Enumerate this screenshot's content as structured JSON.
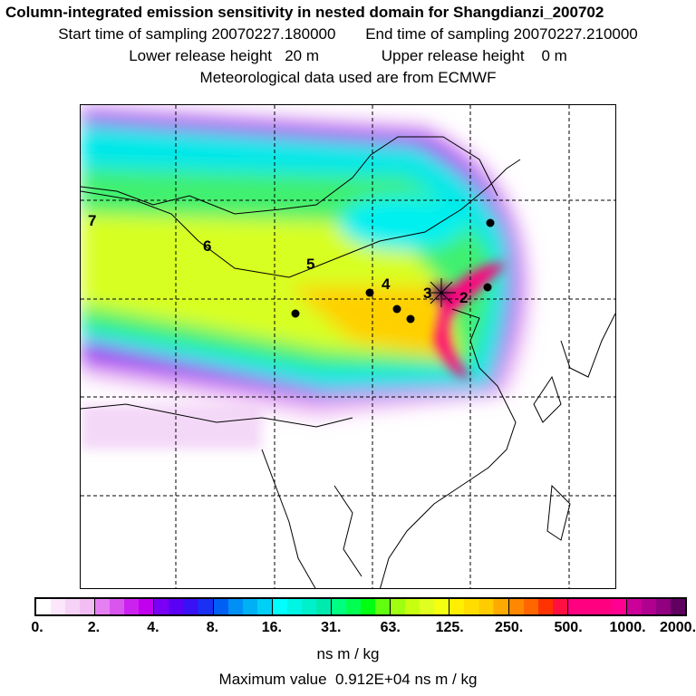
{
  "title": "Column-integrated emission sensitivity in nested domain for Shangdianzi_200702",
  "start_label": "Start time of sampling",
  "start_value": "20070227.180000",
  "end_label": "End time of sampling",
  "end_value": "20070227.210000",
  "lower_label": "Lower release height",
  "lower_value": "20 m",
  "upper_label": "Upper release height",
  "upper_value": "0 m",
  "met_text": "Meteorological data used are from ECMWF",
  "map_labels": [
    "2",
    "3",
    "4",
    "5",
    "6",
    "7"
  ],
  "colorbar": {
    "ticks": [
      "0.",
      "2.",
      "4.",
      "8.",
      "16.",
      "31.",
      "63.",
      "125.",
      "250.",
      "500.",
      "1000.",
      "2000."
    ],
    "bin_colors": [
      [
        "#ffffff",
        "#fbe6fb",
        "#f6d2f6",
        "#f2bdf2"
      ],
      [
        "#e580f2",
        "#d955ee",
        "#cc22f0",
        "#c000ee"
      ],
      [
        "#7a00f5",
        "#5a00f5",
        "#3a10f5",
        "#1a30f5"
      ],
      [
        "#0060f5",
        "#0090f5",
        "#00b0f5",
        "#00d0f5"
      ],
      [
        "#00ffff",
        "#00f5e5",
        "#00f0cc",
        "#00eab0"
      ],
      [
        "#00ff80",
        "#00ff50",
        "#00ff10",
        "#60ff10"
      ],
      [
        "#a0ff10",
        "#c8ff10",
        "#e0ff20",
        "#f5ff10"
      ],
      [
        "#ffee00",
        "#ffdd00",
        "#ffcc00",
        "#ffaa00"
      ],
      [
        "#ff8800",
        "#ff6600",
        "#ff3300",
        "#ff1040"
      ],
      [
        "#ff0080",
        "#ff0080",
        "#ff0080",
        "#ff0090"
      ],
      [
        "#cc0099",
        "#b00090",
        "#900080",
        "#600060"
      ]
    ],
    "unit": "ns m / kg"
  },
  "maximum_label": "Maximum value",
  "maximum_value": "0.912E+04 ns m / kg"
}
